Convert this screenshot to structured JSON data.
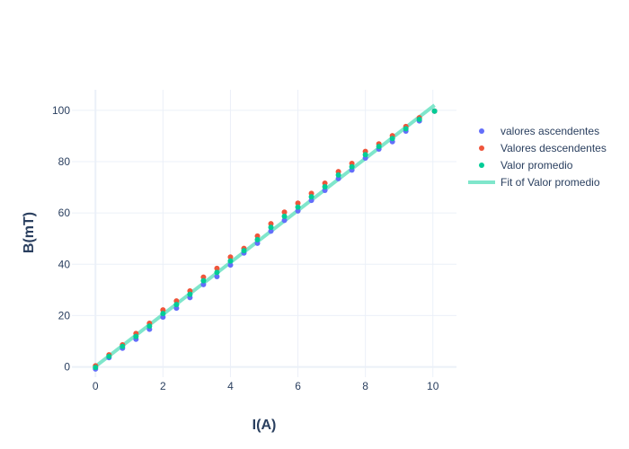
{
  "chart_data": {
    "type": "scatter",
    "xlabel": "I(A)",
    "ylabel": "B(mT)",
    "xlim": [
      -0.7,
      10.7
    ],
    "ylim": [
      -4,
      108
    ],
    "xticks": [
      0,
      2,
      4,
      6,
      8,
      10
    ],
    "yticks": [
      0,
      20,
      40,
      60,
      80,
      100
    ],
    "grid": true,
    "legend_position": "right",
    "x": [
      0,
      0.4,
      0.8,
      1.2,
      1.6,
      2.0,
      2.4,
      2.8,
      3.2,
      3.6,
      4.0,
      4.4,
      4.8,
      5.2,
      5.6,
      6.0,
      6.4,
      6.8,
      7.2,
      7.6,
      8.0,
      8.4,
      8.8,
      9.2,
      9.6,
      10.05
    ],
    "series": [
      {
        "name": "valores ascendentes",
        "color": "#636efa",
        "mode": "markers",
        "y": [
          -0.8,
          3.6,
          7.3,
          10.8,
          14.7,
          19.4,
          22.9,
          27.0,
          32.1,
          35.2,
          39.7,
          44.4,
          48.2,
          52.9,
          57.1,
          60.8,
          64.9,
          68.8,
          73.4,
          76.7,
          81.4,
          84.9,
          87.8,
          91.9,
          95.9,
          99.7
        ]
      },
      {
        "name": "Valores descendentes",
        "color": "#ef553b",
        "mode": "markers",
        "y": [
          0.4,
          4.7,
          8.6,
          13.0,
          17.0,
          22.2,
          25.7,
          29.6,
          35.0,
          38.4,
          42.8,
          46.2,
          51.0,
          55.8,
          60.3,
          63.8,
          67.6,
          71.6,
          76.1,
          79.3,
          84.0,
          86.9,
          90.1,
          93.7,
          97.1,
          99.7
        ]
      },
      {
        "name": "Valor promedio",
        "color": "#00cc96",
        "mode": "markers",
        "y": [
          -0.2,
          4.1,
          8.0,
          11.9,
          15.9,
          20.8,
          24.3,
          28.3,
          33.6,
          36.8,
          41.3,
          45.3,
          49.6,
          54.4,
          58.7,
          62.3,
          66.3,
          70.2,
          74.8,
          78.0,
          82.7,
          85.9,
          89.0,
          92.8,
          96.5,
          99.7
        ]
      },
      {
        "name": "Fit of Valor promedio",
        "color": "#7fe6cb",
        "mode": "line",
        "x": [
          0,
          10.05
        ],
        "y": [
          0.2,
          102.0
        ]
      }
    ]
  }
}
